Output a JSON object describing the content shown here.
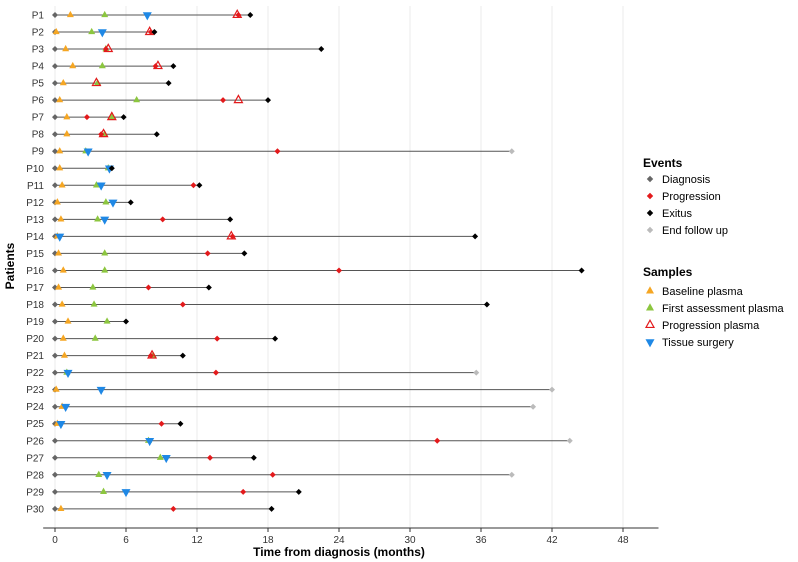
{
  "chart_data": {
    "type": "timeline",
    "xlabel": "Time from diagnosis (months)",
    "ylabel": "Patients",
    "xlim": [
      -1,
      51
    ],
    "xticks": [
      0,
      6,
      12,
      18,
      24,
      30,
      36,
      42,
      48
    ],
    "legend_events": {
      "title": "Events",
      "items": [
        {
          "key": "diagnosis",
          "label": "Diagnosis",
          "color": "#666666",
          "shape": "diamond"
        },
        {
          "key": "progression",
          "label": "Progression",
          "color": "#e31a1c",
          "shape": "diamond"
        },
        {
          "key": "exitus",
          "label": "Exitus",
          "color": "#000000",
          "shape": "diamond"
        },
        {
          "key": "end_follow_up",
          "label": "End follow up",
          "color": "#bbbbbb",
          "shape": "diamond"
        }
      ]
    },
    "legend_samples": {
      "title": "Samples",
      "items": [
        {
          "key": "baseline",
          "label": "Baseline plasma",
          "color": "#f5a623",
          "shape": "triangle-up"
        },
        {
          "key": "first_assessment",
          "label": "First assessment plasma",
          "color": "#8cc63f",
          "shape": "triangle-up"
        },
        {
          "key": "progression_plasma",
          "label": "Progression plasma",
          "color": "#e31a1c",
          "shape": "triangle-up-open"
        },
        {
          "key": "tissue",
          "label": "Tissue surgery",
          "color": "#1f88e5",
          "shape": "triangle-down"
        }
      ]
    },
    "patients": [
      {
        "id": "P1",
        "end": 16.5,
        "end_type": "exitus",
        "events": [
          {
            "type": "progression",
            "t": 15.5
          }
        ],
        "samples": [
          {
            "type": "baseline",
            "t": 1.3
          },
          {
            "type": "first_assessment",
            "t": 4.2
          },
          {
            "type": "tissue",
            "t": 7.8
          },
          {
            "type": "progression_plasma",
            "t": 15.4
          }
        ]
      },
      {
        "id": "P2",
        "end": 8.4,
        "end_type": "exitus",
        "events": [
          {
            "type": "progression",
            "t": 8.1
          }
        ],
        "samples": [
          {
            "type": "baseline",
            "t": 0.1
          },
          {
            "type": "first_assessment",
            "t": 3.1
          },
          {
            "type": "tissue",
            "t": 4.0
          },
          {
            "type": "progression_plasma",
            "t": 8.0
          }
        ]
      },
      {
        "id": "P3",
        "end": 22.5,
        "end_type": "exitus",
        "events": [
          {
            "type": "progression",
            "t": 4.3
          }
        ],
        "samples": [
          {
            "type": "baseline",
            "t": 0.9
          },
          {
            "type": "first_assessment",
            "t": 4.3
          },
          {
            "type": "progression_plasma",
            "t": 4.5
          }
        ]
      },
      {
        "id": "P4",
        "end": 10.0,
        "end_type": "exitus",
        "events": [
          {
            "type": "progression",
            "t": 8.5
          }
        ],
        "samples": [
          {
            "type": "baseline",
            "t": 1.5
          },
          {
            "type": "first_assessment",
            "t": 4.0
          },
          {
            "type": "progression_plasma",
            "t": 8.7
          }
        ]
      },
      {
        "id": "P5",
        "end": 9.6,
        "end_type": "exitus",
        "events": [],
        "samples": [
          {
            "type": "baseline",
            "t": 0.7
          },
          {
            "type": "first_assessment",
            "t": 3.6
          },
          {
            "type": "progression_plasma",
            "t": 3.5
          }
        ]
      },
      {
        "id": "P6",
        "end": 18.0,
        "end_type": "exitus",
        "events": [
          {
            "type": "progression",
            "t": 14.2
          }
        ],
        "samples": [
          {
            "type": "baseline",
            "t": 0.4
          },
          {
            "type": "first_assessment",
            "t": 6.9
          },
          {
            "type": "progression_plasma",
            "t": 15.5
          }
        ]
      },
      {
        "id": "P7",
        "end": 5.8,
        "end_type": "exitus",
        "events": [
          {
            "type": "progression",
            "t": 2.7
          }
        ],
        "samples": [
          {
            "type": "baseline",
            "t": 1.0
          },
          {
            "type": "first_assessment",
            "t": 4.8
          },
          {
            "type": "progression_plasma",
            "t": 4.8
          }
        ]
      },
      {
        "id": "P8",
        "end": 8.6,
        "end_type": "exitus",
        "events": [
          {
            "type": "progression",
            "t": 3.9
          }
        ],
        "samples": [
          {
            "type": "baseline",
            "t": 1.0
          },
          {
            "type": "first_assessment",
            "t": 4.2
          },
          {
            "type": "progression_plasma",
            "t": 4.1
          }
        ]
      },
      {
        "id": "P9",
        "end": 38.6,
        "end_type": "end_follow_up",
        "events": [
          {
            "type": "progression",
            "t": 18.8
          }
        ],
        "samples": [
          {
            "type": "baseline",
            "t": 0.4
          },
          {
            "type": "first_assessment",
            "t": 2.6
          },
          {
            "type": "tissue",
            "t": 2.8
          }
        ]
      },
      {
        "id": "P10",
        "end": 4.8,
        "end_type": "exitus",
        "events": [],
        "samples": [
          {
            "type": "baseline",
            "t": 0.4
          },
          {
            "type": "first_assessment",
            "t": 4.5
          },
          {
            "type": "tissue",
            "t": 4.6
          }
        ]
      },
      {
        "id": "P11",
        "end": 12.2,
        "end_type": "exitus",
        "events": [
          {
            "type": "progression",
            "t": 11.7
          }
        ],
        "samples": [
          {
            "type": "baseline",
            "t": 0.6
          },
          {
            "type": "first_assessment",
            "t": 3.5
          },
          {
            "type": "tissue",
            "t": 3.9
          }
        ]
      },
      {
        "id": "P12",
        "end": 6.4,
        "end_type": "exitus",
        "events": [],
        "samples": [
          {
            "type": "baseline",
            "t": 0.2
          },
          {
            "type": "first_assessment",
            "t": 4.3
          },
          {
            "type": "tissue",
            "t": 4.9
          }
        ]
      },
      {
        "id": "P13",
        "end": 14.8,
        "end_type": "exitus",
        "events": [
          {
            "type": "progression",
            "t": 9.1
          }
        ],
        "samples": [
          {
            "type": "baseline",
            "t": 0.5
          },
          {
            "type": "first_assessment",
            "t": 3.6
          },
          {
            "type": "tissue",
            "t": 4.2
          }
        ]
      },
      {
        "id": "P14",
        "end": 35.5,
        "end_type": "exitus",
        "events": [
          {
            "type": "progression",
            "t": 15.0
          }
        ],
        "samples": [
          {
            "type": "baseline",
            "t": 0.2
          },
          {
            "type": "tissue",
            "t": 0.4
          },
          {
            "type": "progression_plasma",
            "t": 14.9
          }
        ]
      },
      {
        "id": "P15",
        "end": 16.0,
        "end_type": "exitus",
        "events": [
          {
            "type": "progression",
            "t": 12.9
          }
        ],
        "samples": [
          {
            "type": "baseline",
            "t": 0.3
          },
          {
            "type": "first_assessment",
            "t": 4.2
          }
        ]
      },
      {
        "id": "P16",
        "end": 44.5,
        "end_type": "exitus",
        "events": [
          {
            "type": "progression",
            "t": 24.0
          }
        ],
        "samples": [
          {
            "type": "baseline",
            "t": 0.7
          },
          {
            "type": "first_assessment",
            "t": 4.2
          }
        ]
      },
      {
        "id": "P17",
        "end": 13.0,
        "end_type": "exitus",
        "events": [
          {
            "type": "progression",
            "t": 7.9
          }
        ],
        "samples": [
          {
            "type": "baseline",
            "t": 0.3
          },
          {
            "type": "first_assessment",
            "t": 3.2
          }
        ]
      },
      {
        "id": "P18",
        "end": 36.5,
        "end_type": "exitus",
        "events": [
          {
            "type": "progression",
            "t": 10.8
          }
        ],
        "samples": [
          {
            "type": "baseline",
            "t": 0.6
          },
          {
            "type": "first_assessment",
            "t": 3.3
          }
        ]
      },
      {
        "id": "P19",
        "end": 6.0,
        "end_type": "exitus",
        "events": [],
        "samples": [
          {
            "type": "baseline",
            "t": 1.1
          },
          {
            "type": "first_assessment",
            "t": 4.4
          }
        ]
      },
      {
        "id": "P20",
        "end": 18.6,
        "end_type": "exitus",
        "events": [
          {
            "type": "progression",
            "t": 13.7
          }
        ],
        "samples": [
          {
            "type": "baseline",
            "t": 0.7
          },
          {
            "type": "first_assessment",
            "t": 3.4
          }
        ]
      },
      {
        "id": "P21",
        "end": 10.8,
        "end_type": "exitus",
        "events": [
          {
            "type": "progression",
            "t": 8.1
          }
        ],
        "samples": [
          {
            "type": "baseline",
            "t": 0.8
          },
          {
            "type": "first_assessment",
            "t": 8.3
          },
          {
            "type": "progression_plasma",
            "t": 8.2
          }
        ]
      },
      {
        "id": "P22",
        "end": 35.6,
        "end_type": "end_follow_up",
        "events": [
          {
            "type": "progression",
            "t": 13.6
          }
        ],
        "samples": [
          {
            "type": "first_assessment",
            "t": 1.0
          },
          {
            "type": "tissue",
            "t": 1.1
          }
        ]
      },
      {
        "id": "P23",
        "end": 42.0,
        "end_type": "end_follow_up",
        "events": [],
        "samples": [
          {
            "type": "baseline",
            "t": 0.1
          },
          {
            "type": "tissue",
            "t": 3.9
          }
        ]
      },
      {
        "id": "P24",
        "end": 40.4,
        "end_type": "end_follow_up",
        "events": [],
        "samples": [
          {
            "type": "baseline",
            "t": 0.6
          },
          {
            "type": "tissue",
            "t": 0.9
          }
        ]
      },
      {
        "id": "P25",
        "end": 10.6,
        "end_type": "exitus",
        "events": [
          {
            "type": "progression",
            "t": 9.0
          }
        ],
        "samples": [
          {
            "type": "baseline",
            "t": 0.2
          },
          {
            "type": "tissue",
            "t": 0.5
          }
        ]
      },
      {
        "id": "P26",
        "end": 43.5,
        "end_type": "end_follow_up",
        "events": [
          {
            "type": "progression",
            "t": 32.3
          }
        ],
        "samples": [
          {
            "type": "first_assessment",
            "t": 7.9
          },
          {
            "type": "tissue",
            "t": 8.0
          }
        ]
      },
      {
        "id": "P27",
        "end": 16.8,
        "end_type": "exitus",
        "events": [
          {
            "type": "progression",
            "t": 13.1
          }
        ],
        "samples": [
          {
            "type": "first_assessment",
            "t": 8.9
          },
          {
            "type": "tissue",
            "t": 9.4
          }
        ]
      },
      {
        "id": "P28",
        "end": 38.6,
        "end_type": "end_follow_up",
        "events": [
          {
            "type": "progression",
            "t": 18.4
          }
        ],
        "samples": [
          {
            "type": "first_assessment",
            "t": 3.7
          },
          {
            "type": "tissue",
            "t": 4.4
          }
        ]
      },
      {
        "id": "P29",
        "end": 20.6,
        "end_type": "exitus",
        "events": [
          {
            "type": "progression",
            "t": 15.9
          }
        ],
        "samples": [
          {
            "type": "first_assessment",
            "t": 4.1
          },
          {
            "type": "tissue",
            "t": 6.0
          }
        ]
      },
      {
        "id": "P30",
        "end": 18.3,
        "end_type": "exitus",
        "events": [
          {
            "type": "progression",
            "t": 10.0
          }
        ],
        "samples": [
          {
            "type": "baseline",
            "t": 0.5
          }
        ]
      }
    ]
  }
}
